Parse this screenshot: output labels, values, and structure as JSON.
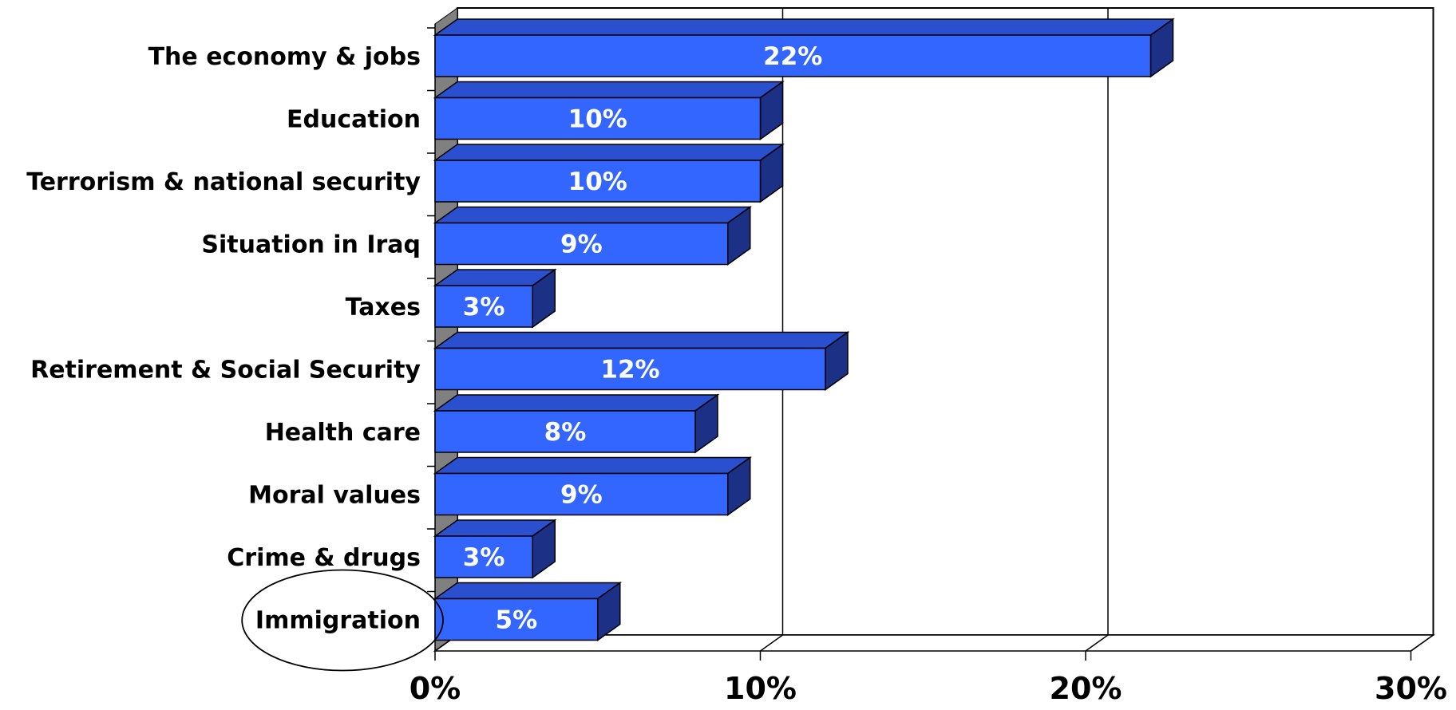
{
  "chart_data": {
    "type": "bar",
    "orientation": "horizontal",
    "style": "3d",
    "title": "",
    "xlabel": "",
    "ylabel": "",
    "categories": [
      "The economy & jobs",
      "Education",
      "Terrorism & national security",
      "Situation in Iraq",
      "Taxes",
      "Retirement & Social Security",
      "Health care",
      "Moral values",
      "Crime & drugs",
      "Immigration"
    ],
    "values": [
      22,
      10,
      10,
      9,
      3,
      12,
      8,
      9,
      3,
      5
    ],
    "data_labels": [
      "22%",
      "10%",
      "10%",
      "9%",
      "3%",
      "12%",
      "8%",
      "9%",
      "3%",
      "5%"
    ],
    "xlim": [
      0,
      30
    ],
    "x_ticks": [
      0,
      10,
      20,
      30
    ],
    "x_tick_labels": [
      "0%",
      "10%",
      "20%",
      "30%"
    ],
    "highlighted_category": "Immigration",
    "grid": true,
    "legend": "none",
    "colors": {
      "bar_front": "#3366ff",
      "bar_top": "#2a4fcf",
      "bar_side": "#1c3185",
      "outline": "#000000",
      "wall": "#808080",
      "label_text": "#ffffff"
    }
  }
}
